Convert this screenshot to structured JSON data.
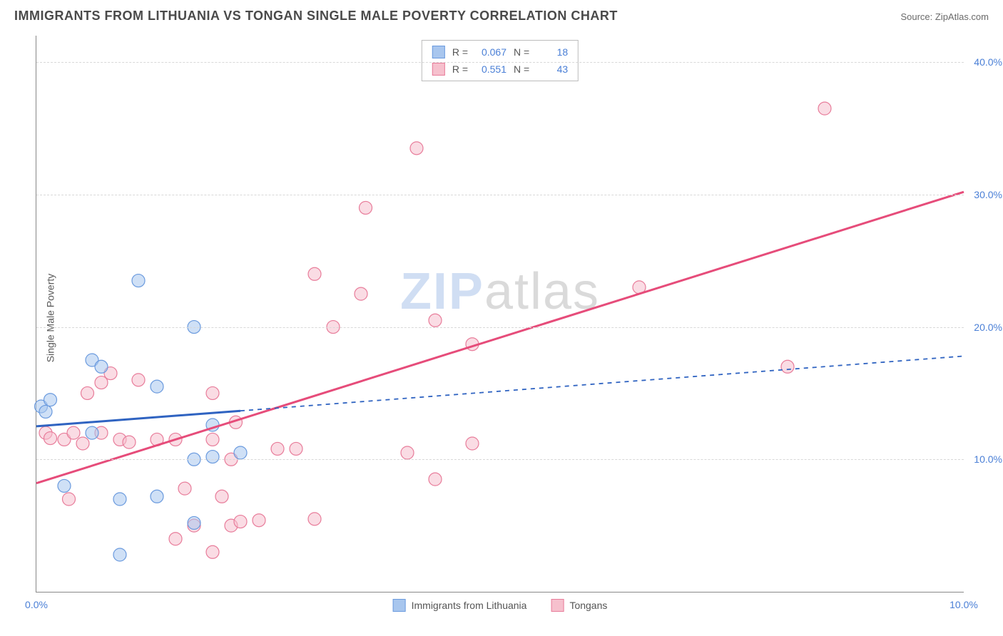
{
  "title": "IMMIGRANTS FROM LITHUANIA VS TONGAN SINGLE MALE POVERTY CORRELATION CHART",
  "source_label": "Source: ",
  "source_value": "ZipAtlas.com",
  "ylabel": "Single Male Poverty",
  "watermark": {
    "part1": "ZIP",
    "part2": "atlas"
  },
  "colors": {
    "series_a_fill": "#a8c6ee",
    "series_a_stroke": "#6a9ade",
    "series_b_fill": "#f6c0cd",
    "series_b_stroke": "#e87c9a",
    "trend_a": "#2f63c1",
    "trend_b": "#e64c7a",
    "axis_text": "#4a7fd6",
    "grid": "#d8d8d8"
  },
  "chart": {
    "type": "scatter",
    "xlim": [
      0,
      10
    ],
    "ylim": [
      0,
      42
    ],
    "ytick_values": [
      10,
      20,
      30,
      40
    ],
    "ytick_labels": [
      "10.0%",
      "20.0%",
      "30.0%",
      "40.0%"
    ],
    "xtick_values": [
      0,
      10
    ],
    "xtick_labels": [
      "0.0%",
      "10.0%"
    ],
    "marker_radius": 9,
    "marker_opacity": 0.55,
    "line_width_a": 3,
    "line_width_b": 3,
    "dash_a": "6,6"
  },
  "stats": {
    "r_label": "R =",
    "n_label": "N =",
    "a": {
      "r": "0.067",
      "n": "18"
    },
    "b": {
      "r": "0.551",
      "n": "43"
    }
  },
  "series_a": {
    "name": "Immigrants from Lithuania",
    "trend": {
      "x1": 0,
      "y1": 12.5,
      "x2": 10,
      "y2": 17.8,
      "solid_until_x": 2.2
    },
    "points": [
      [
        0.05,
        14.0
      ],
      [
        0.1,
        13.6
      ],
      [
        0.15,
        14.5
      ],
      [
        0.3,
        8.0
      ],
      [
        0.6,
        12.0
      ],
      [
        0.6,
        17.5
      ],
      [
        0.7,
        17.0
      ],
      [
        0.9,
        2.8
      ],
      [
        0.9,
        7.0
      ],
      [
        1.1,
        23.5
      ],
      [
        1.3,
        15.5
      ],
      [
        1.3,
        7.2
      ],
      [
        1.7,
        20.0
      ],
      [
        1.7,
        10.0
      ],
      [
        1.7,
        5.2
      ],
      [
        1.9,
        10.2
      ],
      [
        1.9,
        12.6
      ],
      [
        2.2,
        10.5
      ]
    ]
  },
  "series_b": {
    "name": "Tongans",
    "trend": {
      "x1": 0,
      "y1": 8.2,
      "x2": 10,
      "y2": 30.2
    },
    "points": [
      [
        0.1,
        12.0
      ],
      [
        0.15,
        11.6
      ],
      [
        0.3,
        11.5
      ],
      [
        0.35,
        7.0
      ],
      [
        0.4,
        12.0
      ],
      [
        0.5,
        11.2
      ],
      [
        0.55,
        15.0
      ],
      [
        0.7,
        12.0
      ],
      [
        0.7,
        15.8
      ],
      [
        0.8,
        16.5
      ],
      [
        0.9,
        11.5
      ],
      [
        1.0,
        11.3
      ],
      [
        1.1,
        16.0
      ],
      [
        1.3,
        11.5
      ],
      [
        1.5,
        4.0
      ],
      [
        1.5,
        11.5
      ],
      [
        1.6,
        7.8
      ],
      [
        1.7,
        5.0
      ],
      [
        1.9,
        3.0
      ],
      [
        1.9,
        11.5
      ],
      [
        1.9,
        15.0
      ],
      [
        2.0,
        7.2
      ],
      [
        2.1,
        5.0
      ],
      [
        2.1,
        10.0
      ],
      [
        2.15,
        12.8
      ],
      [
        2.2,
        5.3
      ],
      [
        2.4,
        5.4
      ],
      [
        2.6,
        10.8
      ],
      [
        2.8,
        10.8
      ],
      [
        3.0,
        24.0
      ],
      [
        3.0,
        5.5
      ],
      [
        3.2,
        20.0
      ],
      [
        3.5,
        22.5
      ],
      [
        3.55,
        29.0
      ],
      [
        4.0,
        10.5
      ],
      [
        4.1,
        33.5
      ],
      [
        4.3,
        8.5
      ],
      [
        4.3,
        20.5
      ],
      [
        4.7,
        18.7
      ],
      [
        4.7,
        11.2
      ],
      [
        6.5,
        23.0
      ],
      [
        8.1,
        17.0
      ],
      [
        8.5,
        36.5
      ]
    ]
  },
  "bottom_legend": {
    "a": "Immigrants from Lithuania",
    "b": "Tongans"
  }
}
